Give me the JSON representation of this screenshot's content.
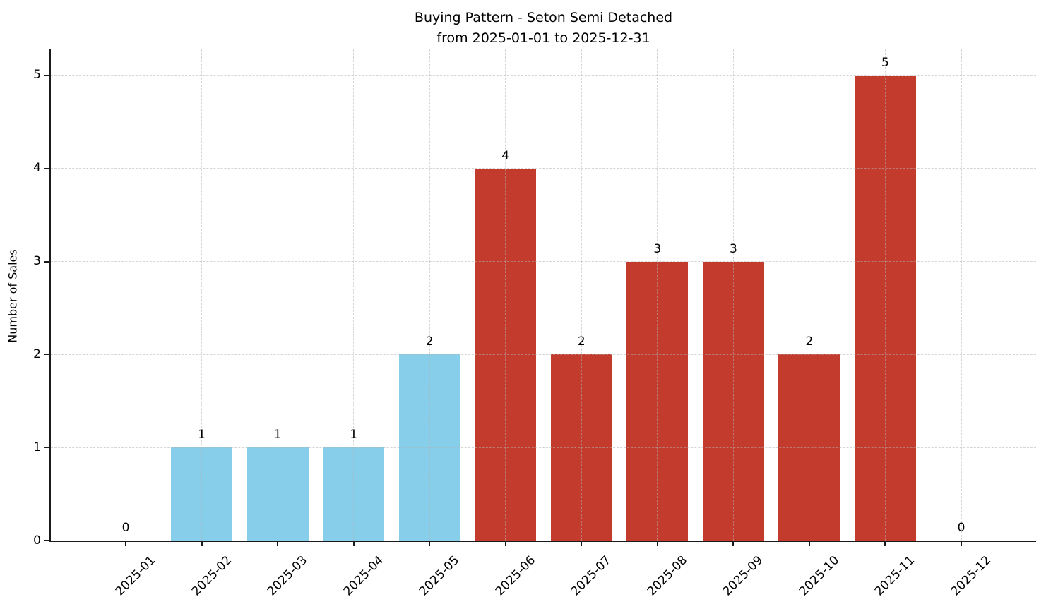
{
  "chart_data": {
    "type": "bar",
    "title_line1": "Buying Pattern - Seton Semi Detached",
    "title_line2": "from 2025-01-01 to 2025-12-31",
    "ylabel": "Number of Sales",
    "xlabel": "",
    "categories": [
      "2025-01",
      "2025-02",
      "2025-03",
      "2025-04",
      "2025-05",
      "2025-06",
      "2025-07",
      "2025-08",
      "2025-09",
      "2025-10",
      "2025-11",
      "2025-12"
    ],
    "values": [
      0,
      1,
      1,
      1,
      2,
      4,
      2,
      3,
      3,
      2,
      5,
      0
    ],
    "bar_colors": [
      "#87ceeb",
      "#87ceeb",
      "#87ceeb",
      "#87ceeb",
      "#87ceeb",
      "#c33b2c",
      "#c33b2c",
      "#c33b2c",
      "#c33b2c",
      "#c33b2c",
      "#c33b2c",
      "#c33b2c"
    ],
    "value_labels": [
      "0",
      "1",
      "1",
      "1",
      "2",
      "4",
      "2",
      "3",
      "3",
      "2",
      "5",
      "0"
    ],
    "yticks": [
      0,
      1,
      2,
      3,
      4,
      5
    ],
    "ylim": [
      0,
      5.28
    ],
    "grid": true,
    "grid_style": "dashed",
    "legend": "none",
    "accent_colors": {
      "blue_bar": "#87ceeb",
      "red_bar": "#c33b2c",
      "gridline": "#d9d9d9",
      "axis": "#1a1a1a"
    }
  }
}
